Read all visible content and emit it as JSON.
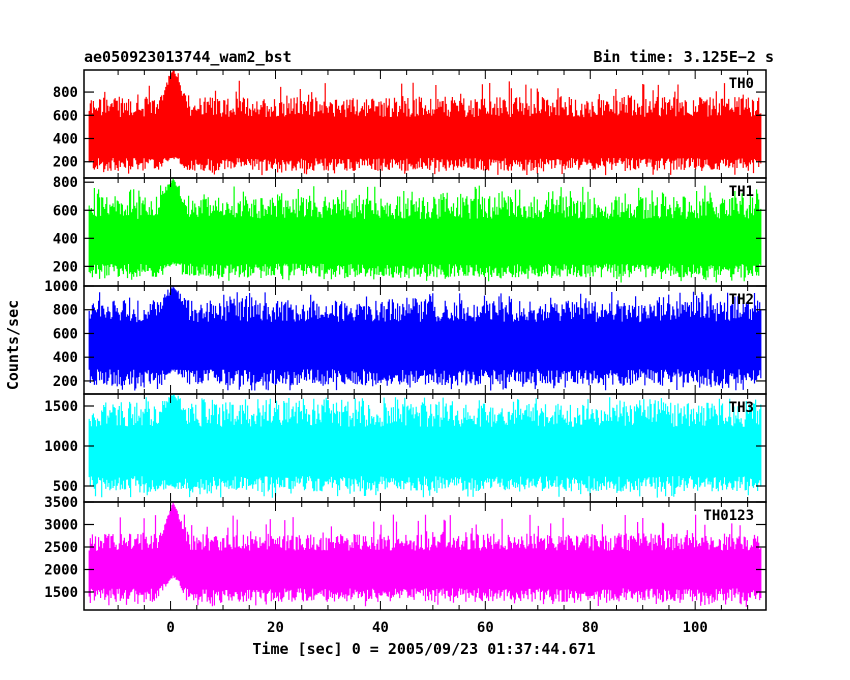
{
  "chart_data": {
    "type": "line",
    "title_left": "ae050923013744_wam2_bst",
    "title_right": "Bin time: 3.125E−2 s",
    "xlabel": "Time [sec] 0 = 2005/09/23 01:37:44.671",
    "ylabel": "Counts/sec",
    "xlim": [
      -16.5,
      113.5
    ],
    "x_ticks": [
      0,
      20,
      40,
      60,
      80,
      100
    ],
    "x_range_data": [
      -15.5,
      112.5
    ],
    "burst_time": 0.5,
    "panels": [
      {
        "name": "TH0",
        "color": "#ff0000",
        "ylim": [
          60,
          990
        ],
        "y_ticks": [
          200,
          400,
          600,
          800
        ],
        "mean": 370,
        "low": 120,
        "high": 760,
        "peak": 1000,
        "burst_low": 240
      },
      {
        "name": "TH1",
        "color": "#00ff00",
        "ylim": [
          60,
          830
        ],
        "y_ticks": [
          200,
          400,
          600,
          800
        ],
        "mean": 340,
        "low": 120,
        "high": 700,
        "peak": 830,
        "burst_low": 230
      },
      {
        "name": "TH2",
        "color": "#0000ff",
        "ylim": [
          90,
          1000
        ],
        "y_ticks": [
          200,
          400,
          600,
          800,
          1000
        ],
        "mean": 470,
        "low": 160,
        "high": 880,
        "peak": 1000,
        "burst_low": 300
      },
      {
        "name": "TH3",
        "color": "#00ffff",
        "ylim": [
          300,
          1650
        ],
        "y_ticks": [
          500,
          1000,
          1500
        ],
        "mean": 860,
        "low": 430,
        "high": 1550,
        "peak": 1650,
        "burst_low": 500
      },
      {
        "name": "TH0123",
        "color": "#ff00ff",
        "ylim": [
          1100,
          3500
        ],
        "y_ticks": [
          1500,
          2000,
          2500,
          3000,
          3500
        ],
        "mean": 1950,
        "low": 1280,
        "high": 2800,
        "peak": 3500,
        "burst_low": 1900
      }
    ]
  }
}
